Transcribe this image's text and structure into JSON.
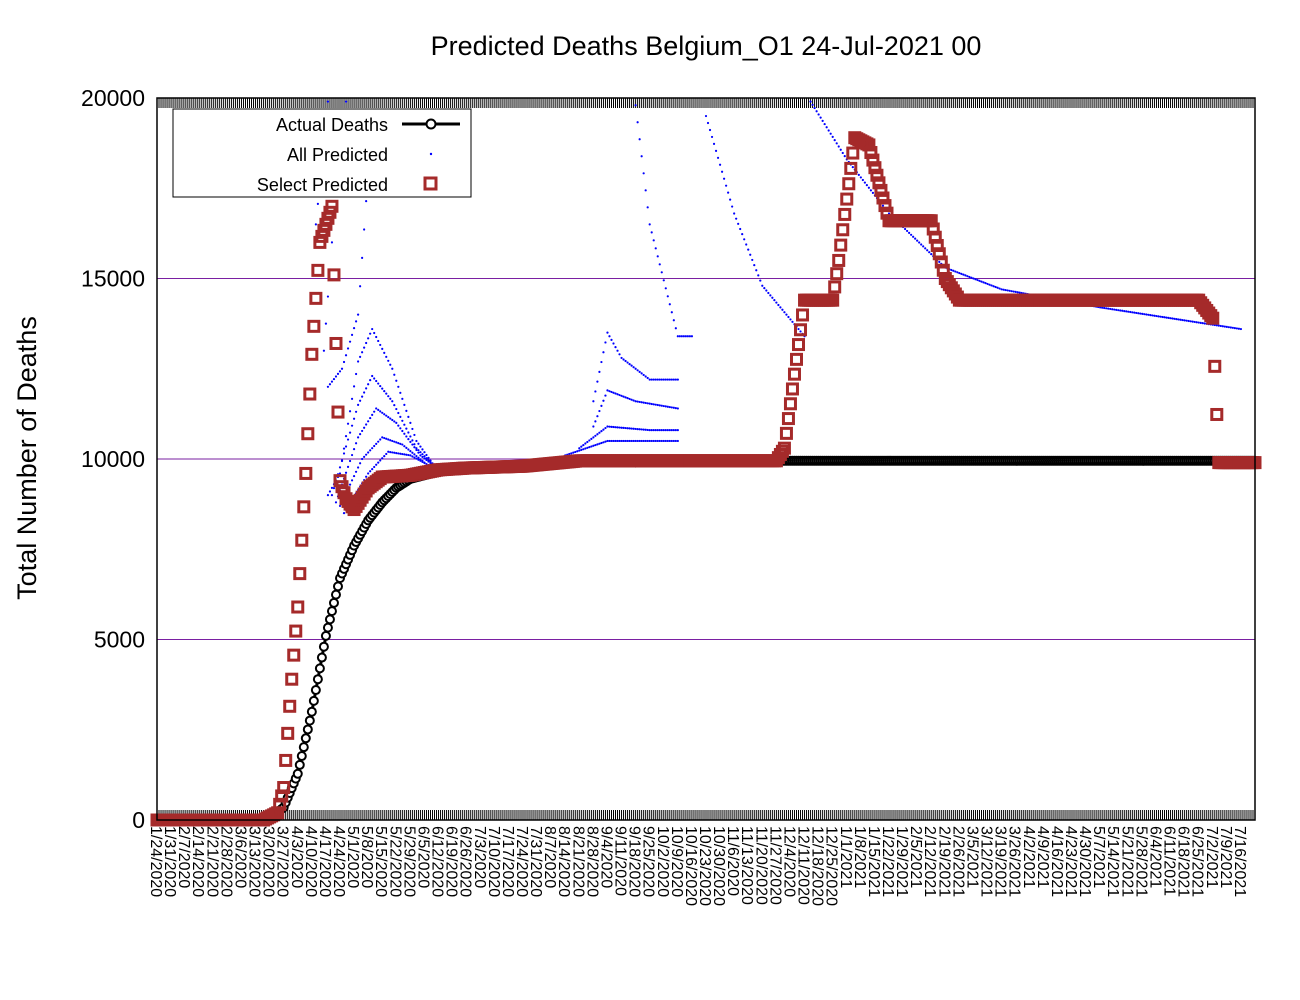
{
  "chart_data": {
    "type": "scatter",
    "title": "Predicted Deaths Belgium_O1 24-Jul-2021 00",
    "ylabel": "Total Number of Deaths",
    "xlabel": "",
    "ylim": [
      0,
      20000
    ],
    "yticks": [
      0,
      5000,
      10000,
      15000,
      20000
    ],
    "grid": "horizontal",
    "legend_position": "top-left",
    "x_start": "1/24/2020",
    "x_end": "7/23/2021",
    "categories": [
      "1/24/2020",
      "1/31/2020",
      "2/7/2020",
      "2/14/2020",
      "2/21/2020",
      "2/28/2020",
      "3/6/2020",
      "3/13/2020",
      "3/20/2020",
      "3/27/2020",
      "4/3/2020",
      "4/10/2020",
      "4/17/2020",
      "4/24/2020",
      "5/1/2020",
      "5/8/2020",
      "5/15/2020",
      "5/22/2020",
      "5/29/2020",
      "6/5/2020",
      "6/12/2020",
      "6/19/2020",
      "6/26/2020",
      "7/3/2020",
      "7/10/2020",
      "7/17/2020",
      "7/24/2020",
      "7/31/2020",
      "8/7/2020",
      "8/14/2020",
      "8/21/2020",
      "8/28/2020",
      "9/4/2020",
      "9/11/2020",
      "9/18/2020",
      "9/25/2020",
      "10/2/2020",
      "10/9/2020",
      "10/16/2020",
      "10/23/2020",
      "10/30/2020",
      "11/6/2020",
      "11/13/2020",
      "11/20/2020",
      "11/27/2020",
      "12/4/2020",
      "12/11/2020",
      "12/18/2020",
      "12/25/2020",
      "1/1/2021",
      "1/8/2021",
      "1/15/2021",
      "1/22/2021",
      "1/29/2021",
      "2/5/2021",
      "2/12/2021",
      "2/19/2021",
      "2/26/2021",
      "3/5/2021",
      "3/12/2021",
      "3/19/2021",
      "3/26/2021",
      "4/2/2021",
      "4/9/2021",
      "4/16/2021",
      "4/23/2021",
      "4/30/2021",
      "5/7/2021",
      "5/14/2021",
      "5/21/2021",
      "5/28/2021",
      "6/4/2021",
      "6/11/2021",
      "6/18/2021",
      "6/25/2021",
      "7/2/2021",
      "7/9/2021",
      "7/16/2021"
    ],
    "series": [
      {
        "name": "Actual Deaths",
        "color": "#000000",
        "style": "line-circles",
        "points": [
          [
            "1/24/2020",
            0
          ],
          [
            "3/10/2020",
            0
          ],
          [
            "3/20/2020",
            30
          ],
          [
            "3/27/2020",
            350
          ],
          [
            "4/3/2020",
            1280
          ],
          [
            "4/10/2020",
            3000
          ],
          [
            "4/17/2020",
            5100
          ],
          [
            "4/24/2020",
            6700
          ],
          [
            "5/1/2020",
            7600
          ],
          [
            "5/8/2020",
            8300
          ],
          [
            "5/15/2020",
            8800
          ],
          [
            "5/22/2020",
            9200
          ],
          [
            "5/29/2020",
            9450
          ],
          [
            "6/12/2020",
            9650
          ],
          [
            "6/26/2020",
            9730
          ],
          [
            "7/24/2020",
            9800
          ],
          [
            "8/21/2020",
            9950
          ],
          [
            "9/18/2020",
            9900
          ],
          [
            "10/16/2020",
            9950
          ],
          [
            "12/18/2020",
            9950
          ],
          [
            "7/23/2021",
            9950
          ]
        ]
      },
      {
        "name": "All Predicted",
        "color": "#0000ff",
        "style": "dots",
        "curves": [
          [
            [
              "4/12/2020",
              16500
            ],
            [
              "4/18/2020",
              19900
            ]
          ],
          [
            [
              "4/16/2020",
              13000
            ],
            [
              "4/22/2020",
              17500
            ],
            [
              "4/27/2020",
              19900
            ]
          ],
          [
            [
              "4/18/2020",
              12000
            ],
            [
              "4/25/2020",
              12500
            ],
            [
              "5/3/2020",
              14000
            ],
            [
              "5/10/2020",
              19500
            ]
          ],
          [
            [
              "4/18/2020",
              9000
            ],
            [
              "4/24/2020",
              9600
            ],
            [
              "5/3/2020",
              12700
            ],
            [
              "5/10/2020",
              13600
            ],
            [
              "5/20/2020",
              12500
            ],
            [
              "6/1/2020",
              10500
            ],
            [
              "6/10/2020",
              9800
            ]
          ],
          [
            [
              "4/20/2020",
              9000
            ],
            [
              "5/3/2020",
              11500
            ],
            [
              "5/10/2020",
              12300
            ],
            [
              "5/20/2020",
              11600
            ],
            [
              "6/1/2020",
              10300
            ],
            [
              "6/10/2020",
              9800
            ]
          ],
          [
            [
              "4/22/2020",
              8800
            ],
            [
              "5/3/2020",
              10600
            ],
            [
              "5/12/2020",
              11400
            ],
            [
              "5/22/2020",
              11000
            ],
            [
              "6/3/2020",
              10100
            ],
            [
              "6/10/2020",
              9800
            ]
          ],
          [
            [
              "4/24/2020",
              8700
            ],
            [
              "5/5/2020",
              10000
            ],
            [
              "5/15/2020",
              10600
            ],
            [
              "5/25/2020",
              10400
            ],
            [
              "6/5/2020",
              9900
            ]
          ],
          [
            [
              "4/26/2020",
              8500
            ],
            [
              "5/8/2020",
              9600
            ],
            [
              "5/18/2020",
              10200
            ],
            [
              "5/29/2020",
              10100
            ],
            [
              "6/8/2020",
              9800
            ]
          ],
          [
            [
              "8/28/2020",
              11600
            ],
            [
              "9/4/2020",
              13500
            ],
            [
              "9/11/2020",
              12800
            ],
            [
              "9/25/2020",
              12200
            ],
            [
              "10/9/2020",
              12200
            ]
          ],
          [
            [
              "8/28/2020",
              10900
            ],
            [
              "9/4/2020",
              11900
            ],
            [
              "9/18/2020",
              11600
            ],
            [
              "10/9/2020",
              11400
            ]
          ],
          [
            [
              "8/21/2020",
              10300
            ],
            [
              "9/4/2020",
              10900
            ],
            [
              "9/25/2020",
              10800
            ],
            [
              "10/9/2020",
              10800
            ]
          ],
          [
            [
              "8/14/2020",
              10100
            ],
            [
              "9/4/2020",
              10500
            ],
            [
              "10/9/2020",
              10500
            ]
          ],
          [
            [
              "9/18/2020",
              19800
            ],
            [
              "9/25/2020",
              16500
            ],
            [
              "10/9/2020",
              13400
            ],
            [
              "10/16/2020",
              13400
            ]
          ],
          [
            [
              "10/23/2020",
              19500
            ],
            [
              "11/6/2020",
              16800
            ],
            [
              "11/20/2020",
              14800
            ],
            [
              "12/11/2020",
              13400
            ]
          ],
          [
            [
              "12/14/2020",
              19900
            ],
            [
              "1/1/2021",
              18300
            ],
            [
              "1/22/2021",
              16800
            ],
            [
              "2/19/2021",
              15300
            ],
            [
              "3/19/2021",
              14700
            ],
            [
              "5/7/2021",
              14200
            ],
            [
              "7/16/2021",
              13600
            ]
          ]
        ]
      },
      {
        "name": "Select Predicted",
        "color": "#a52a2a",
        "style": "open-squares",
        "points": [
          [
            "1/24/2020",
            0
          ],
          [
            "3/17/2020",
            0
          ],
          [
            "3/24/2020",
            200
          ],
          [
            "3/27/2020",
            900
          ],
          [
            "3/31/2020",
            3900
          ],
          [
            "4/3/2020",
            5900
          ],
          [
            "4/7/2020",
            9600
          ],
          [
            "4/10/2020",
            12900
          ],
          [
            "4/14/2020",
            16000
          ],
          [
            "4/17/2020",
            16500
          ],
          [
            "4/20/2020",
            17000
          ],
          [
            "4/24/2020",
            9400
          ],
          [
            "4/27/2020",
            8900
          ],
          [
            "5/1/2020",
            8600
          ],
          [
            "5/8/2020",
            9200
          ],
          [
            "5/15/2020",
            9500
          ],
          [
            "5/29/2020",
            9550
          ],
          [
            "6/12/2020",
            9700
          ],
          [
            "6/26/2020",
            9750
          ],
          [
            "7/24/2020",
            9800
          ],
          [
            "8/21/2020",
            9950
          ],
          [
            "9/18/2020",
            9950
          ],
          [
            "10/16/2020",
            9950
          ],
          [
            "11/27/2020",
            9950
          ],
          [
            "12/1/2020",
            10300
          ],
          [
            "12/11/2020",
            14400
          ],
          [
            "12/25/2020",
            14400
          ],
          [
            "12/28/2020",
            15500
          ],
          [
            "1/5/2021",
            18900
          ],
          [
            "1/12/2021",
            18700
          ],
          [
            "1/22/2021",
            16600
          ],
          [
            "2/12/2021",
            16600
          ],
          [
            "2/19/2021",
            15000
          ],
          [
            "2/26/2021",
            14400
          ],
          [
            "6/25/2021",
            14400
          ],
          [
            "7/2/2021",
            13900
          ],
          [
            "7/5/2021",
            9900
          ],
          [
            "7/23/2021",
            9900
          ]
        ]
      }
    ]
  }
}
